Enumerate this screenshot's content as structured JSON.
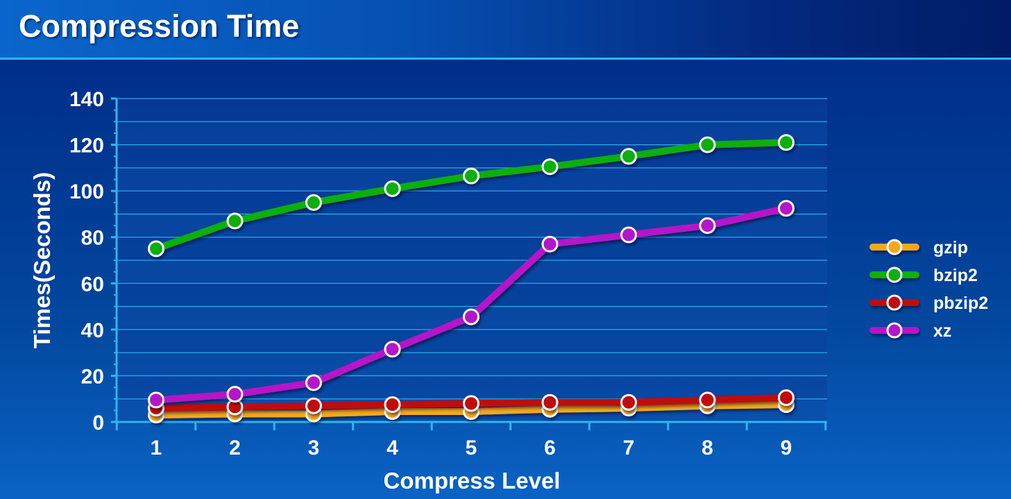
{
  "title": "Compression Time",
  "colors": {
    "gzip": "#f5a81c",
    "bzip2": "#0cae0c",
    "pbzip2": "#bf0a0a",
    "xz": "#b414c8",
    "axis": "#2fb6f0",
    "grid": "#2fb6f0"
  },
  "chart_data": {
    "type": "line",
    "title": "",
    "xlabel": "Compress Level",
    "ylabel": "Times(Seconds)",
    "x": [
      1,
      2,
      3,
      4,
      5,
      6,
      7,
      8,
      9
    ],
    "ylim": [
      0,
      140
    ],
    "yticks": [
      0,
      20,
      40,
      60,
      80,
      100,
      120,
      140
    ],
    "grid": true,
    "legend_position": "right",
    "series": [
      {
        "name": "gzip",
        "values": [
          3,
          3.5,
          3.5,
          4.5,
          4.5,
          5.5,
          6,
          7,
          7.5
        ]
      },
      {
        "name": "bzip2",
        "values": [
          75,
          87,
          95,
          101,
          106.5,
          110.5,
          115,
          120,
          121
        ]
      },
      {
        "name": "pbzip2",
        "values": [
          6,
          6.5,
          7,
          7.5,
          8,
          8.5,
          8.5,
          9.5,
          10.5
        ]
      },
      {
        "name": "xz",
        "values": [
          9.5,
          12,
          17,
          31.5,
          45.5,
          77,
          81,
          85,
          92.5
        ]
      }
    ]
  }
}
